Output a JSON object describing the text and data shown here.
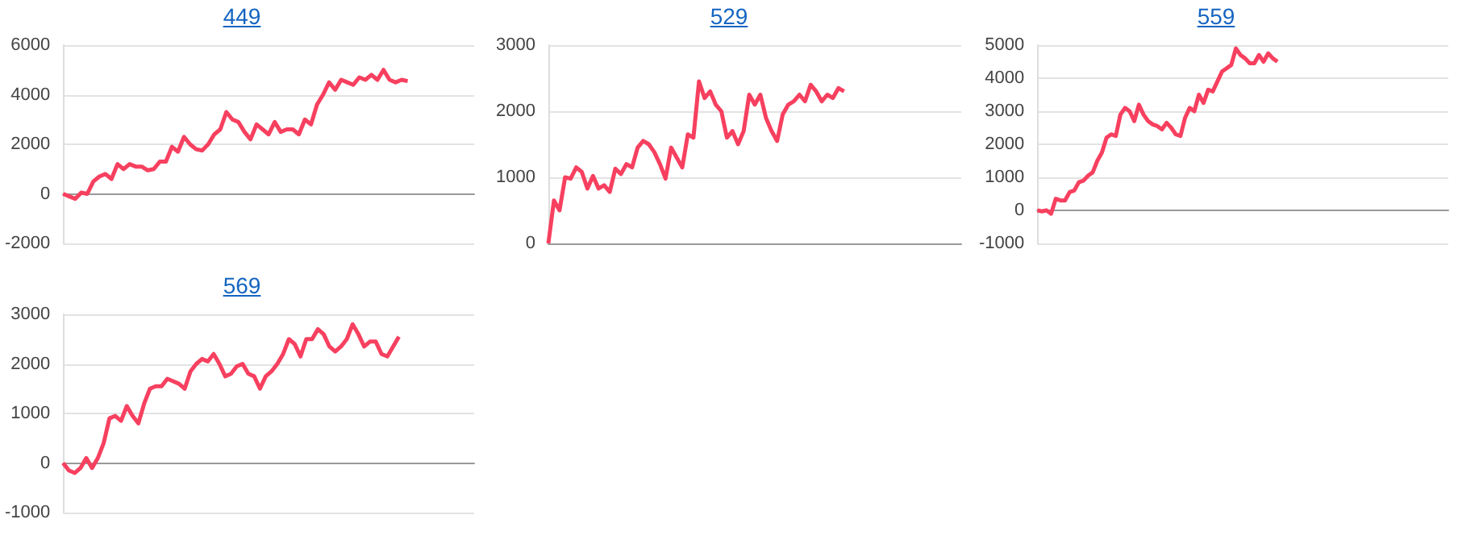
{
  "chart_data": [
    {
      "type": "line",
      "title": "449",
      "categories": [
        null,
        null,
        null,
        null,
        null,
        null,
        null,
        null,
        null,
        null,
        null,
        null,
        null,
        null,
        null,
        null,
        null,
        null,
        null,
        null,
        null,
        null,
        null,
        null,
        null,
        null,
        null,
        null,
        null,
        null,
        null,
        null,
        null,
        null,
        null,
        null,
        null,
        null,
        null,
        null,
        null,
        null,
        null,
        null,
        null,
        null,
        null,
        null,
        null,
        null,
        null,
        null,
        null,
        null,
        null,
        null,
        null,
        null,
        null,
        null,
        null,
        null,
        null,
        null,
        null,
        null,
        null,
        null,
        null
      ],
      "series": [
        {
          "color": "#f7405f",
          "values": [
            0,
            -100,
            -200,
            50,
            0,
            500,
            700,
            800,
            600,
            1200,
            1000,
            1200,
            1100,
            1100,
            950,
            1000,
            1300,
            1300,
            1900,
            1700,
            2300,
            2000,
            1800,
            1750,
            2000,
            2400,
            2600,
            3300,
            3000,
            2900,
            2500,
            2200,
            2800,
            2600,
            2400,
            2900,
            2500,
            2600,
            2600,
            2400,
            3000,
            2800,
            3600,
            4000,
            4500,
            4200,
            4600,
            4500,
            4400,
            4700,
            4600,
            4800,
            4600,
            5000,
            4600,
            4500,
            4600,
            4550,
            null,
            null,
            null,
            null,
            null,
            null,
            null,
            null,
            null,
            null,
            null
          ]
        }
      ],
      "ylim": [
        -2000,
        6000
      ],
      "yticks": [
        -2000,
        0,
        2000,
        4000,
        6000
      ],
      "grid": "y",
      "marker": "none",
      "line_style": "solid"
    },
    {
      "type": "line",
      "title": "529",
      "categories": [
        null,
        null,
        null,
        null,
        null,
        null,
        null,
        null,
        null,
        null,
        null,
        null,
        null,
        null,
        null,
        null,
        null,
        null,
        null,
        null,
        null,
        null,
        null,
        null,
        null,
        null,
        null,
        null,
        null,
        null,
        null,
        null,
        null,
        null,
        null,
        null,
        null,
        null,
        null,
        null,
        null,
        null,
        null,
        null,
        null,
        null,
        null,
        null,
        null,
        null,
        null,
        null,
        null,
        null,
        null,
        null,
        null,
        null,
        null,
        null,
        null,
        null,
        null,
        null,
        null,
        null,
        null,
        null,
        null,
        null,
        null,
        null,
        null,
        null,
        null
      ],
      "series": [
        {
          "color": "#f7405f",
          "values": [
            0,
            650,
            500,
            1000,
            980,
            1150,
            1080,
            830,
            1020,
            830,
            880,
            780,
            1130,
            1050,
            1200,
            1150,
            1450,
            1550,
            1500,
            1380,
            1200,
            980,
            1450,
            1300,
            1150,
            1650,
            1600,
            2450,
            2200,
            2300,
            2100,
            2000,
            1600,
            1700,
            1500,
            1700,
            2250,
            2100,
            2250,
            1900,
            1700,
            1550,
            1950,
            2100,
            2150,
            2250,
            2150,
            2400,
            2300,
            2150,
            2250,
            2200,
            2350,
            2300,
            null,
            null,
            null,
            null,
            null,
            null,
            null,
            null,
            null,
            null,
            null,
            null,
            null,
            null,
            null,
            null,
            null,
            null,
            null,
            null,
            null
          ]
        }
      ],
      "ylim": [
        0,
        3000
      ],
      "yticks": [
        0,
        1000,
        2000,
        3000
      ],
      "grid": "y",
      "marker": "none",
      "line_style": "solid"
    },
    {
      "type": "line",
      "title": "559",
      "categories": [
        null,
        null,
        null,
        null,
        null,
        null,
        null,
        null,
        null,
        null,
        null,
        null,
        null,
        null,
        null,
        null,
        null,
        null,
        null,
        null,
        null,
        null,
        null,
        null,
        null,
        null,
        null,
        null,
        null,
        null,
        null,
        null,
        null,
        null,
        null,
        null,
        null,
        null,
        null,
        null,
        null,
        null,
        null,
        null,
        null,
        null,
        null,
        null,
        null,
        null,
        null,
        null,
        null,
        null,
        null,
        null,
        null,
        null,
        null,
        null,
        null,
        null,
        null,
        null,
        null,
        null,
        null,
        null,
        null,
        null,
        null,
        null,
        null,
        null,
        null,
        null,
        null,
        null,
        null,
        null,
        null,
        null,
        null,
        null,
        null,
        null,
        null,
        null,
        null,
        null
      ],
      "series": [
        {
          "color": "#f7405f",
          "values": [
            0,
            -30,
            0,
            -100,
            350,
            300,
            300,
            550,
            600,
            850,
            900,
            1050,
            1150,
            1500,
            1750,
            2200,
            2300,
            2250,
            2900,
            3100,
            3000,
            2700,
            3200,
            2900,
            2700,
            2600,
            2550,
            2450,
            2650,
            2500,
            2300,
            2250,
            2800,
            3100,
            3000,
            3500,
            3250,
            3650,
            3600,
            3900,
            4200,
            4300,
            4400,
            4900,
            4700,
            4600,
            4450,
            4450,
            4700,
            4500,
            4750,
            4600,
            4500,
            null,
            null,
            null,
            null,
            null,
            null,
            null,
            null,
            null,
            null,
            null,
            null,
            null,
            null,
            null,
            null,
            null,
            null,
            null,
            null,
            null,
            null,
            null,
            null,
            null,
            null,
            null,
            null,
            null,
            null,
            null,
            null,
            null,
            null,
            null,
            null,
            null
          ]
        }
      ],
      "ylim": [
        -1000,
        5000
      ],
      "yticks": [
        -1000,
        0,
        1000,
        2000,
        3000,
        4000,
        5000
      ],
      "grid": "y",
      "marker": "none",
      "line_style": "solid"
    },
    {
      "type": "line",
      "title": "569",
      "categories": [
        null,
        null,
        null,
        null,
        null,
        null,
        null,
        null,
        null,
        null,
        null,
        null,
        null,
        null,
        null,
        null,
        null,
        null,
        null,
        null,
        null,
        null,
        null,
        null,
        null,
        null,
        null,
        null,
        null,
        null,
        null,
        null,
        null,
        null,
        null,
        null,
        null,
        null,
        null,
        null,
        null,
        null,
        null,
        null,
        null,
        null,
        null,
        null,
        null,
        null,
        null,
        null,
        null,
        null,
        null,
        null,
        null,
        null,
        null,
        null,
        null,
        null,
        null,
        null,
        null,
        null,
        null,
        null,
        null,
        null,
        null,
        null
      ],
      "series": [
        {
          "color": "#f7405f",
          "values": [
            0,
            -150,
            -200,
            -100,
            100,
            -100,
            100,
            400,
            900,
            950,
            850,
            1150,
            950,
            800,
            1200,
            1500,
            1550,
            1550,
            1700,
            1650,
            1600,
            1500,
            1850,
            2000,
            2100,
            2050,
            2200,
            2000,
            1750,
            1800,
            1950,
            2000,
            1800,
            1750,
            1500,
            1750,
            1850,
            2000,
            2200,
            2500,
            2400,
            2150,
            2500,
            2500,
            2700,
            2600,
            2350,
            2250,
            2350,
            2500,
            2800,
            2600,
            2350,
            2450,
            2450,
            2200,
            2150,
            2350,
            2550,
            null,
            null,
            null,
            null,
            null,
            null,
            null,
            null,
            null,
            null,
            null,
            null,
            null
          ]
        }
      ],
      "ylim": [
        -1000,
        3000
      ],
      "yticks": [
        -1000,
        0,
        1000,
        2000,
        3000
      ],
      "grid": "y",
      "marker": "none",
      "line_style": "solid"
    }
  ]
}
